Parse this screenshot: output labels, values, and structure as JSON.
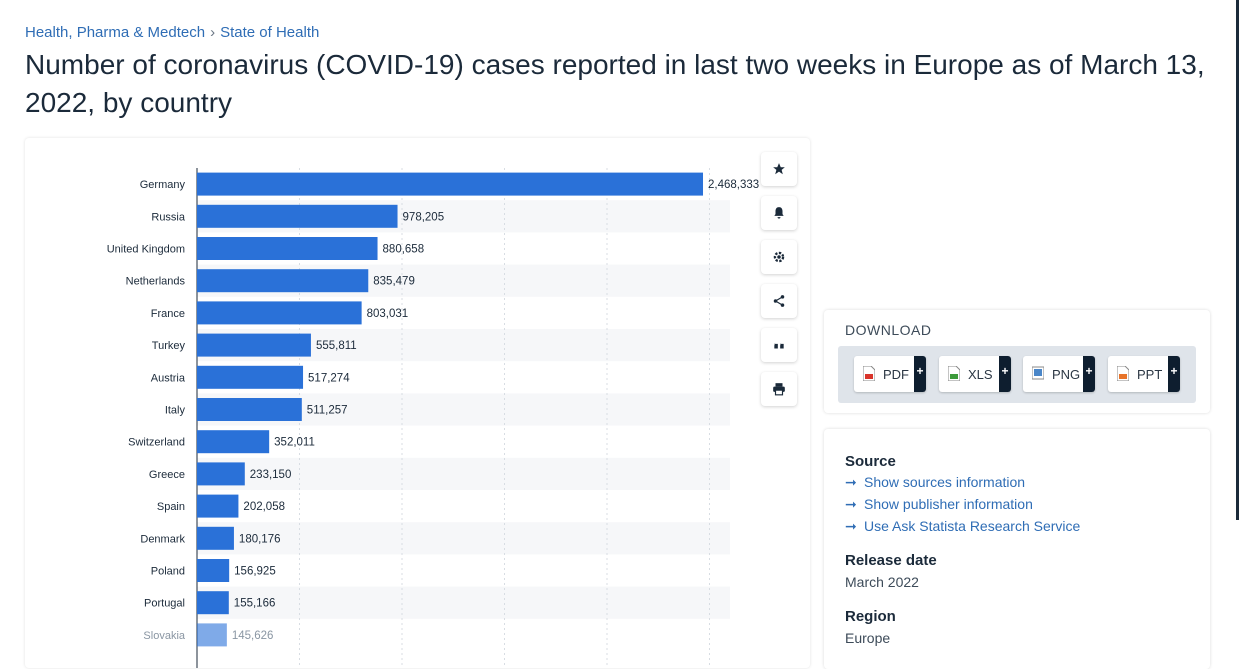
{
  "breadcrumb": {
    "category": "Health, Pharma & Medtech",
    "separator": "›",
    "topic": "State of Health"
  },
  "title": "Number of coronavirus (COVID-19) cases reported in last two weeks in Europe as of March 13, 2022, by country",
  "colors": {
    "bar": "#2a71d8",
    "link": "#2f6db5",
    "text": "#1b2a3a"
  },
  "chart_data": {
    "type": "bar",
    "orientation": "horizontal",
    "title": "",
    "xlabel": "",
    "ylabel": "",
    "xlim": [
      0,
      2600000
    ],
    "categories": [
      "Germany",
      "Russia",
      "United Kingdom",
      "Netherlands",
      "France",
      "Turkey",
      "Austria",
      "Italy",
      "Switzerland",
      "Greece",
      "Spain",
      "Denmark",
      "Poland",
      "Portugal",
      "Slovakia"
    ],
    "values": [
      2468333,
      978205,
      880658,
      835479,
      803031,
      555811,
      517274,
      511257,
      352011,
      233150,
      202058,
      180176,
      156925,
      155166,
      145626
    ],
    "value_labels": [
      "2,468,333",
      "978,205",
      "880,658",
      "835,479",
      "803,031",
      "555,811",
      "517,274",
      "511,257",
      "352,011",
      "233,150",
      "202,058",
      "180,176",
      "156,925",
      "155,166",
      "145,626"
    ]
  },
  "tools": [
    {
      "name": "favorite",
      "icon": "star-icon"
    },
    {
      "name": "alert",
      "icon": "bell-icon"
    },
    {
      "name": "settings",
      "icon": "gear-icon"
    },
    {
      "name": "share",
      "icon": "share-icon"
    },
    {
      "name": "cite",
      "icon": "quote-icon"
    },
    {
      "name": "print",
      "icon": "print-icon"
    }
  ],
  "download": {
    "title": "DOWNLOAD",
    "buttons": [
      {
        "label": "PDF",
        "icon": "pdf-file-icon",
        "plus": "+"
      },
      {
        "label": "XLS",
        "icon": "xls-file-icon",
        "plus": "+"
      },
      {
        "label": "PNG",
        "icon": "png-file-icon",
        "plus": "+"
      },
      {
        "label": "PPT",
        "icon": "ppt-file-icon",
        "plus": "+"
      }
    ]
  },
  "info": {
    "source_heading": "Source",
    "links": [
      "Show sources information",
      "Show publisher information",
      "Use Ask Statista Research Service"
    ],
    "release_heading": "Release date",
    "release_value": "March 2022",
    "region_heading": "Region",
    "region_value": "Europe"
  }
}
